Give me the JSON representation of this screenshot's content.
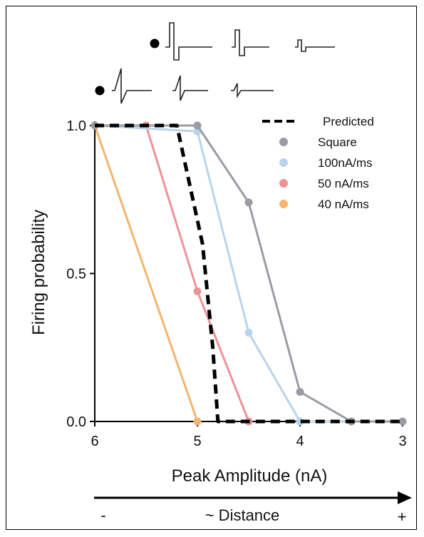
{
  "chart_data": {
    "type": "line",
    "title": "",
    "xlabel": "Peak Amplitude  (nA)",
    "ylabel": "Firing probability",
    "x_reversed": true,
    "xlim": [
      6,
      3
    ],
    "ylim": [
      0,
      1
    ],
    "x_ticks": [
      "6",
      "5",
      "4",
      "3"
    ],
    "y_ticks": [
      "0.0",
      "0.5",
      "1.0"
    ],
    "grid": false,
    "legend_position": "top-right",
    "series": [
      {
        "name": "Predicted",
        "color": "#000000",
        "style": "dashed",
        "markers": false,
        "points": [
          [
            6.0,
            1.0
          ],
          [
            5.2,
            1.0
          ],
          [
            4.95,
            0.6
          ],
          [
            4.85,
            0.25
          ],
          [
            4.8,
            0.0
          ],
          [
            3.0,
            0.0
          ]
        ]
      },
      {
        "name": "Square",
        "color": "#9a9ca3",
        "markers": true,
        "points": [
          [
            6.0,
            1.0
          ],
          [
            5.0,
            1.0
          ],
          [
            4.5,
            0.74
          ],
          [
            4.0,
            0.1
          ],
          [
            3.5,
            0.0
          ],
          [
            3.0,
            0.0
          ]
        ]
      },
      {
        "name": "100nA/ms",
        "color": "#b8d4ec",
        "markers": true,
        "points": [
          [
            6.0,
            1.0
          ],
          [
            5.0,
            0.98
          ],
          [
            4.5,
            0.3
          ],
          [
            4.0,
            0.0
          ],
          [
            3.5,
            0.0
          ]
        ]
      },
      {
        "name": "50 nA/ms",
        "color": "#ef9298",
        "markers": true,
        "points": [
          [
            6.0,
            1.0
          ],
          [
            5.5,
            1.0
          ],
          [
            5.0,
            0.44
          ],
          [
            4.5,
            0.0
          ]
        ]
      },
      {
        "name": "40 nA/ms",
        "color": "#f6b46e",
        "markers": true,
        "points": [
          [
            6.0,
            1.0
          ],
          [
            5.0,
            0.0
          ]
        ]
      }
    ],
    "distance_axis": {
      "label": "~ Distance",
      "left_sign": "-",
      "right_sign": "+"
    },
    "waveform_icons": {
      "top_row": "square-pulse-icons",
      "bottom_row": "ramp-pulse-icons"
    }
  }
}
